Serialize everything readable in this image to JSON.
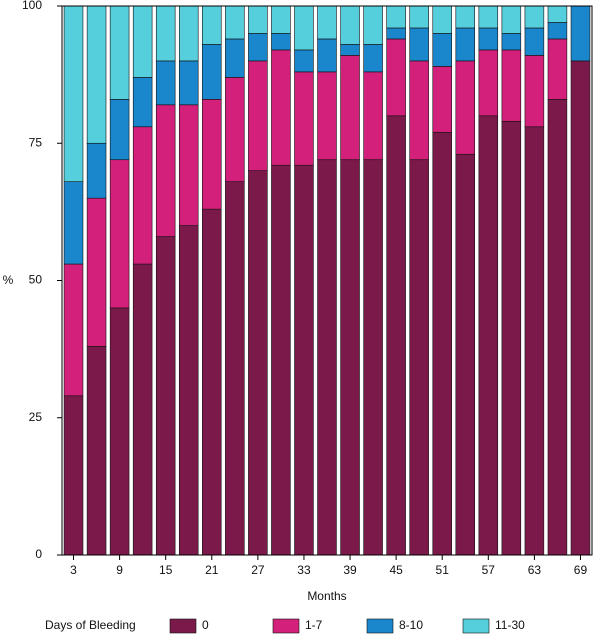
{
  "chart_data": {
    "type": "stacked_bar",
    "x_label": "Months",
    "y_label": "%",
    "legend_title": "Days of Bleeding",
    "categories": [
      "3",
      null,
      "9",
      null,
      "15",
      null,
      "21",
      null,
      "27",
      null,
      "33",
      null,
      "39",
      null,
      "45",
      null,
      "51",
      null,
      "57",
      null,
      "63",
      null,
      "69"
    ],
    "series": [
      {
        "name": "0",
        "color": "#7b1a4a",
        "values": [
          29,
          38,
          45,
          53,
          58,
          60,
          63,
          68,
          70,
          71,
          71,
          72,
          72,
          72,
          80,
          72,
          77,
          73,
          80,
          79,
          78,
          83,
          90
        ]
      },
      {
        "name": "1-7",
        "color": "#d3207a",
        "values": [
          24,
          27,
          27,
          25,
          24,
          22,
          20,
          19,
          20,
          21,
          17,
          16,
          19,
          16,
          14,
          18,
          12,
          17,
          12,
          13,
          13,
          11,
          0
        ]
      },
      {
        "name": "8-10",
        "color": "#1a86cc",
        "values": [
          15,
          10,
          11,
          9,
          8,
          8,
          10,
          7,
          5,
          3,
          4,
          6,
          2,
          5,
          2,
          6,
          6,
          6,
          4,
          3,
          5,
          3,
          10
        ]
      },
      {
        "name": "11-30",
        "color": "#56cfdc",
        "values": [
          32,
          25,
          17,
          13,
          10,
          10,
          7,
          6,
          5,
          5,
          8,
          6,
          7,
          7,
          4,
          4,
          5,
          4,
          4,
          5,
          4,
          3,
          0
        ]
      }
    ],
    "ylim": [
      0,
      100
    ],
    "yticks": [
      0,
      25,
      50,
      75,
      100
    ],
    "legend_position": "bottom"
  }
}
